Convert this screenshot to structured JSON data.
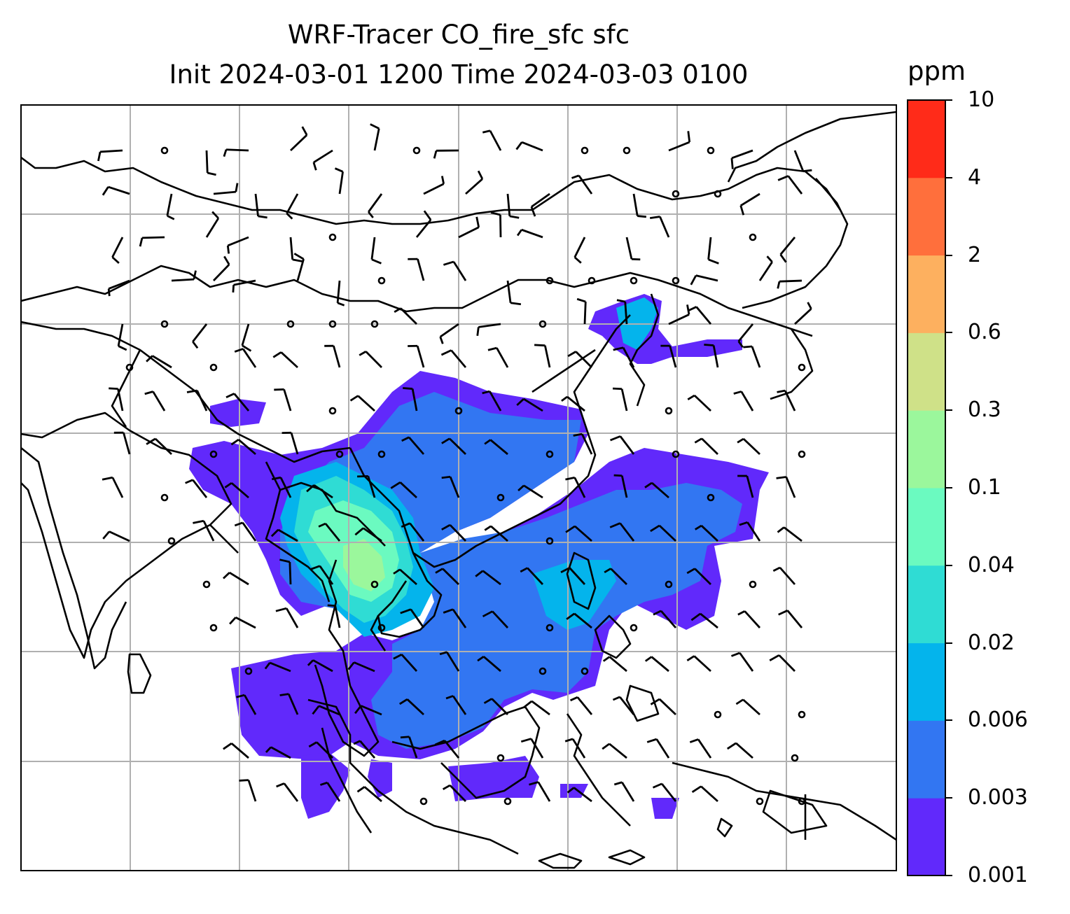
{
  "title": {
    "line1": "WRF-Tracer CO_fire_sfc sfc",
    "line2": "Init 2024-03-01 1200 Time 2024-03-03 0100"
  },
  "colorbar": {
    "unit": "ppm",
    "levels": [
      "0.001",
      "0.003",
      "0.006",
      "0.02",
      "0.04",
      "0.1",
      "0.3",
      "0.6",
      "2",
      "4",
      "10"
    ],
    "colors": [
      "#6129fb",
      "#3276f2",
      "#04b4ec",
      "#2fdcd4",
      "#6bfac0",
      "#9bf79c",
      "#cfe188",
      "#fdb05f",
      "#ff6f3c",
      "#ff2b19"
    ]
  },
  "map": {
    "grid": true,
    "barbs": true,
    "concentration_colors": {
      "c1": "#6129fb",
      "c2": "#3276f2",
      "c3": "#04b4ec",
      "c4": "#2fdcd4",
      "c5": "#6bfac0",
      "c6": "#9bf79c"
    }
  }
}
